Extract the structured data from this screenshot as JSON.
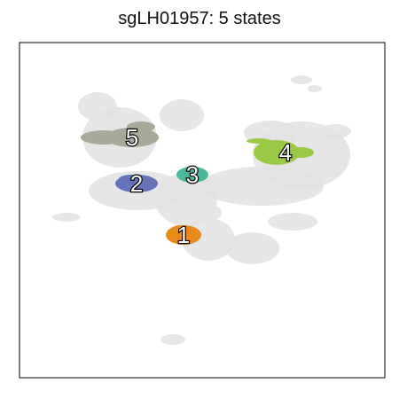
{
  "title": "sgLH01957: 5 states",
  "chart_data": {
    "type": "scatter",
    "title": "sgLH01957: 5 states",
    "xlabel": "",
    "ylabel": "",
    "grid": false,
    "legend": "none",
    "background_color": "#e2e2e2",
    "clusters": [
      {
        "label": "1",
        "color": "#e8891c",
        "center": [
          207,
          265
        ]
      },
      {
        "label": "2",
        "color": "#6673b8",
        "center": [
          154,
          207
        ]
      },
      {
        "label": "3",
        "color": "#4bb89b",
        "center": [
          217,
          197
        ]
      },
      {
        "label": "4",
        "color": "#9ac946",
        "center": [
          322,
          172
        ]
      },
      {
        "label": "5",
        "color": "#a6aa98",
        "center": [
          149,
          155
        ]
      }
    ]
  }
}
